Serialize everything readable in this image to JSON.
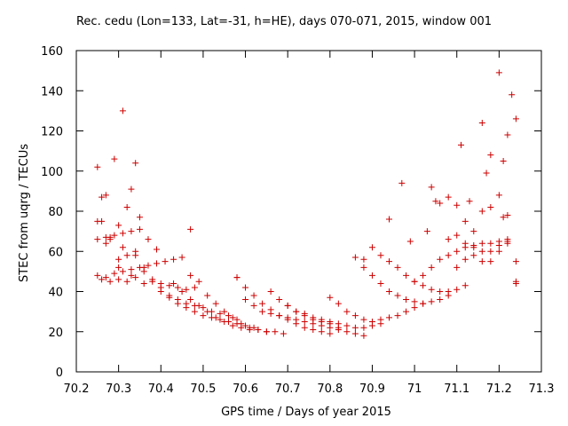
{
  "chart_data": {
    "type": "scatter",
    "title": "Rec. cedu (Lon=133, Lat=-31, h=HE), days 070-071, 2015, window 001",
    "xlabel": "GPS time / Days of year 2015",
    "ylabel": "STEC from uqrg / TECUs",
    "xlim": [
      70.2,
      71.3
    ],
    "ylim": [
      0,
      160
    ],
    "xticks": [
      70.2,
      70.3,
      70.4,
      70.5,
      70.6,
      70.7,
      70.8,
      70.9,
      71,
      71.1,
      71.2,
      71.3
    ],
    "xtick_labels": [
      "70.2",
      "70.3",
      "70.4",
      "70.5",
      "70.6",
      "70.7",
      "70.8",
      "70.9",
      "71",
      "71.1",
      "71.2",
      "71.3"
    ],
    "yticks": [
      0,
      20,
      40,
      60,
      80,
      100,
      120,
      140,
      160
    ],
    "ytick_labels": [
      "0",
      "20",
      "40",
      "60",
      "80",
      "100",
      "120",
      "140",
      "160"
    ],
    "grid": false,
    "legend": "none",
    "marker": "+",
    "color": "#cc0000",
    "series": [
      {
        "x": [
          70.25,
          70.26,
          70.27,
          70.28,
          70.29,
          70.3,
          70.31,
          70.32,
          70.33,
          70.34,
          70.35,
          70.37,
          70.39,
          70.25,
          70.26,
          70.28,
          70.3,
          70.32,
          70.34,
          70.36,
          70.25,
          70.27,
          70.29,
          70.31,
          70.33,
          70.35,
          70.25,
          70.27,
          70.29,
          70.31,
          70.33,
          70.35,
          70.37,
          70.39,
          70.41,
          70.43,
          70.45,
          70.26,
          70.28,
          70.3,
          70.32,
          70.34,
          70.36,
          70.38,
          70.4,
          70.42,
          70.44,
          70.46,
          70.48,
          70.3,
          70.31,
          70.27,
          70.34,
          70.33,
          70.36,
          70.38,
          70.4,
          70.42,
          70.44,
          70.46,
          70.48,
          70.5,
          70.52,
          70.54,
          70.56,
          70.58,
          70.4,
          70.42,
          70.44,
          70.46,
          70.48,
          70.5,
          70.52,
          70.54,
          70.56,
          70.58,
          70.6,
          70.62,
          70.43,
          70.45,
          70.47,
          70.49,
          70.51,
          70.53,
          70.55,
          70.57,
          70.59,
          70.61,
          70.63,
          70.65,
          70.47,
          70.49,
          70.51,
          70.53,
          70.55,
          70.57,
          70.59,
          70.61,
          70.63,
          70.65,
          70.67,
          70.69,
          70.58,
          70.6,
          70.62,
          70.64,
          70.66,
          70.68,
          70.7,
          70.72,
          70.74,
          70.76,
          70.78,
          70.8,
          70.6,
          70.62,
          70.64,
          70.66,
          70.68,
          70.7,
          70.72,
          70.74,
          70.76,
          70.78,
          70.8,
          70.82,
          70.66,
          70.68,
          70.7,
          70.72,
          70.74,
          70.76,
          70.78,
          70.8,
          70.82,
          70.84,
          70.86,
          70.88,
          70.7,
          70.72,
          70.74,
          70.76,
          70.78,
          70.8,
          70.82,
          70.84,
          70.86,
          70.88,
          70.9,
          70.92,
          70.8,
          70.82,
          70.84,
          70.86,
          70.88,
          70.9,
          70.92,
          70.94,
          70.96,
          70.98,
          71.0,
          71.02,
          70.86,
          70.88,
          70.9,
          70.92,
          70.94,
          70.96,
          70.98,
          71.0,
          71.02,
          71.04,
          71.06,
          71.08,
          70.9,
          70.92,
          70.94,
          70.96,
          70.98,
          71.0,
          71.02,
          71.04,
          71.06,
          71.08,
          71.1,
          71.12,
          71.0,
          71.02,
          71.04,
          71.06,
          71.08,
          71.1,
          71.12,
          71.14,
          71.16,
          71.18,
          71.2,
          71.22,
          71.04,
          71.06,
          71.08,
          71.1,
          71.12,
          71.14,
          71.16,
          71.18,
          71.2,
          71.22,
          71.24,
          71.08,
          71.1,
          71.12,
          71.14,
          71.16,
          71.18,
          71.2,
          71.22,
          71.24,
          71.1,
          71.12,
          71.14,
          71.16,
          71.18,
          71.2,
          71.22,
          71.24,
          70.94,
          70.97,
          70.99,
          71.03,
          71.11,
          71.16,
          71.2,
          71.21,
          71.23,
          71.24,
          71.22,
          71.18,
          70.47,
          70.58,
          70.88,
          71.05,
          71.13,
          71.17,
          71.21
        ],
        "y": [
          102,
          87,
          88,
          67,
          106,
          73,
          130,
          82,
          91,
          104,
          77,
          66,
          61,
          75,
          75,
          66,
          56,
          58,
          58,
          52,
          66,
          67,
          68,
          69,
          70,
          71,
          48,
          47,
          49,
          50,
          51,
          52,
          53,
          54,
          55,
          56,
          57,
          46,
          45,
          46,
          45,
          47,
          44,
          45,
          44,
          43,
          42,
          41,
          42,
          52,
          62,
          64,
          60,
          48,
          50,
          46,
          40,
          37,
          36,
          34,
          33,
          32,
          30,
          29,
          28,
          26,
          42,
          38,
          34,
          32,
          30,
          28,
          27,
          26,
          25,
          24,
          23,
          22,
          44,
          40,
          36,
          33,
          30,
          27,
          25,
          23,
          22,
          21,
          21,
          20,
          48,
          45,
          38,
          34,
          30,
          27,
          24,
          22,
          21,
          20,
          20,
          19,
          47,
          42,
          38,
          34,
          31,
          28,
          26,
          24,
          22,
          21,
          20,
          19,
          36,
          33,
          30,
          29,
          28,
          27,
          26,
          25,
          24,
          23,
          22,
          21,
          40,
          36,
          33,
          30,
          28,
          26,
          25,
          24,
          22,
          20,
          19,
          18,
          33,
          30,
          29,
          27,
          26,
          25,
          24,
          23,
          22,
          22,
          23,
          24,
          37,
          34,
          30,
          28,
          26,
          25,
          26,
          27,
          28,
          30,
          32,
          34,
          57,
          52,
          48,
          44,
          40,
          38,
          36,
          35,
          34,
          35,
          36,
          38,
          62,
          58,
          55,
          52,
          48,
          45,
          43,
          41,
          40,
          40,
          41,
          43,
          45,
          48,
          52,
          56,
          58,
          60,
          62,
          63,
          64,
          64,
          65,
          66,
          92,
          84,
          87,
          83,
          75,
          70,
          80,
          82,
          88,
          78,
          45,
          66,
          68,
          64,
          62,
          60,
          60,
          63,
          65,
          44,
          52,
          56,
          58,
          55,
          55,
          60,
          64,
          55,
          76,
          94,
          65,
          70,
          113,
          124,
          149,
          105,
          138,
          126,
          118,
          108,
          71,
          47,
          56,
          85,
          85,
          99,
          77
        ]
      }
    ]
  }
}
